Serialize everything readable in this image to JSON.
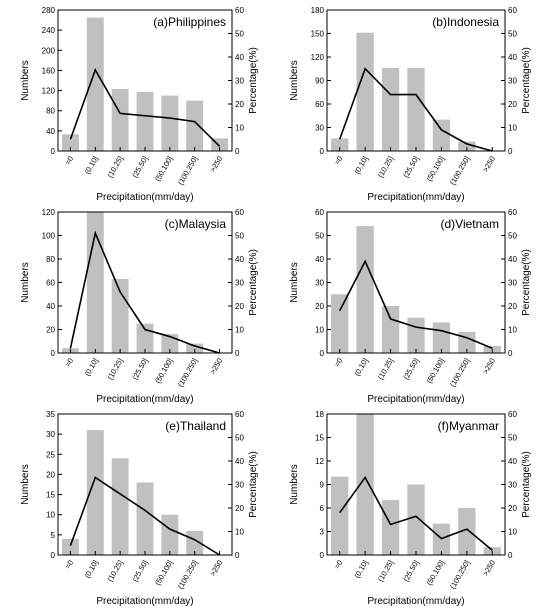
{
  "chart_data": [
    {
      "type": "bar",
      "title": "(a)Philippines",
      "xlabel": "Precipitation(mm/day)",
      "ylabel": "Numbers",
      "y2label": "Percentage(%)",
      "categories": [
        "=0",
        "(0,10]",
        "(10,25]",
        "(25,50]",
        "(50,100]",
        "(100,250]",
        ">250"
      ],
      "ylim": [
        0,
        280
      ],
      "yticks": [
        0,
        40,
        80,
        120,
        160,
        200,
        240,
        280
      ],
      "y2lim": [
        0,
        60
      ],
      "y2ticks": [
        0,
        10,
        20,
        30,
        40,
        50,
        60
      ],
      "bar_values": [
        33,
        265,
        123,
        117,
        110,
        100,
        25
      ],
      "line_values": [
        5,
        34.5,
        16,
        15,
        14,
        12.5,
        2
      ],
      "bar_color": "#c0c0c0",
      "line_color": "#000000"
    },
    {
      "type": "bar",
      "title": "(b)Indonesia",
      "xlabel": "Precipitation(mm/day)",
      "ylabel": "Numbers",
      "y2label": "Percentage(%)",
      "categories": [
        "=0",
        "(0,10]",
        "(10,25]",
        "(25,50]",
        "(50,100]",
        "(100,250]",
        ">250"
      ],
      "ylim": [
        0,
        180
      ],
      "yticks": [
        0,
        30,
        60,
        90,
        120,
        150,
        180
      ],
      "y2lim": [
        0,
        60
      ],
      "y2ticks": [
        0,
        10,
        20,
        30,
        40,
        50,
        60
      ],
      "bar_values": [
        16,
        151,
        106,
        106,
        40,
        12,
        0
      ],
      "line_values": [
        5,
        35,
        24,
        24,
        9,
        3,
        0
      ],
      "bar_color": "#c0c0c0",
      "line_color": "#000000"
    },
    {
      "type": "bar",
      "title": "(c)Malaysia",
      "xlabel": "Precipitation(mm/day)",
      "ylabel": "Numbers",
      "y2label": "Percentage(%)",
      "categories": [
        "=0",
        "(0,10]",
        "(10,25]",
        "(25,50]",
        "(50,100]",
        "(100,250]",
        ">250"
      ],
      "ylim": [
        0,
        120
      ],
      "yticks": [
        0,
        20,
        40,
        60,
        80,
        100,
        120
      ],
      "y2lim": [
        0,
        60
      ],
      "y2ticks": [
        0,
        10,
        20,
        30,
        40,
        50,
        60
      ],
      "bar_values": [
        4,
        120,
        63,
        25,
        16,
        8,
        0
      ],
      "line_values": [
        2,
        51,
        26,
        10,
        7,
        3,
        0
      ],
      "bar_color": "#c0c0c0",
      "line_color": "#000000"
    },
    {
      "type": "bar",
      "title": "(d)Vietnam",
      "xlabel": "Precipitation(mm/day)",
      "ylabel": "Numbers",
      "y2label": "Percentage(%)",
      "categories": [
        "=0",
        "(0,10]",
        "(10,25]",
        "(25,50]",
        "(50,100]",
        "(100,250]",
        ">250"
      ],
      "ylim": [
        0,
        60
      ],
      "yticks": [
        0,
        10,
        20,
        30,
        40,
        50,
        60
      ],
      "y2lim": [
        0,
        60
      ],
      "y2ticks": [
        0,
        10,
        20,
        30,
        40,
        50,
        60
      ],
      "bar_values": [
        25,
        54,
        20,
        15,
        13,
        9,
        3
      ],
      "line_values": [
        18,
        39,
        14.5,
        11,
        9.5,
        6.5,
        2
      ],
      "bar_color": "#c0c0c0",
      "line_color": "#000000"
    },
    {
      "type": "bar",
      "title": "(e)Thailand",
      "xlabel": "Precipitation(mm/day)",
      "ylabel": "Numbers",
      "y2label": "Percentage(%)",
      "categories": [
        "=0",
        "(0,10]",
        "(10,25]",
        "(25,50]",
        "(50,100]",
        "(100,250]",
        ">250"
      ],
      "ylim": [
        0,
        35
      ],
      "yticks": [
        0,
        5,
        10,
        15,
        20,
        25,
        30,
        35
      ],
      "y2lim": [
        0,
        60
      ],
      "y2ticks": [
        0,
        10,
        20,
        30,
        40,
        50,
        60
      ],
      "bar_values": [
        4,
        31,
        24,
        18,
        10,
        6,
        0
      ],
      "line_values": [
        4,
        33,
        26,
        19,
        11,
        6.5,
        0
      ],
      "bar_color": "#c0c0c0",
      "line_color": "#000000"
    },
    {
      "type": "bar",
      "title": "(f)Myanmar",
      "xlabel": "Precipitation(mm/day)",
      "ylabel": "Numbers",
      "y2label": "Percentage(%)",
      "categories": [
        "=0",
        "(0,10]",
        "(10,25]",
        "(25,50]",
        "(50,100]",
        "(100,250]",
        ">250"
      ],
      "ylim": [
        0,
        18
      ],
      "yticks": [
        0,
        3,
        6,
        9,
        12,
        15,
        18
      ],
      "y2lim": [
        0,
        60
      ],
      "y2ticks": [
        0,
        10,
        20,
        30,
        40,
        50,
        60
      ],
      "bar_values": [
        10,
        18,
        7,
        9,
        4,
        6,
        1
      ],
      "line_values": [
        18,
        33,
        13,
        16.5,
        7,
        11,
        2
      ],
      "bar_color": "#c0c0c0",
      "line_color": "#000000"
    }
  ]
}
